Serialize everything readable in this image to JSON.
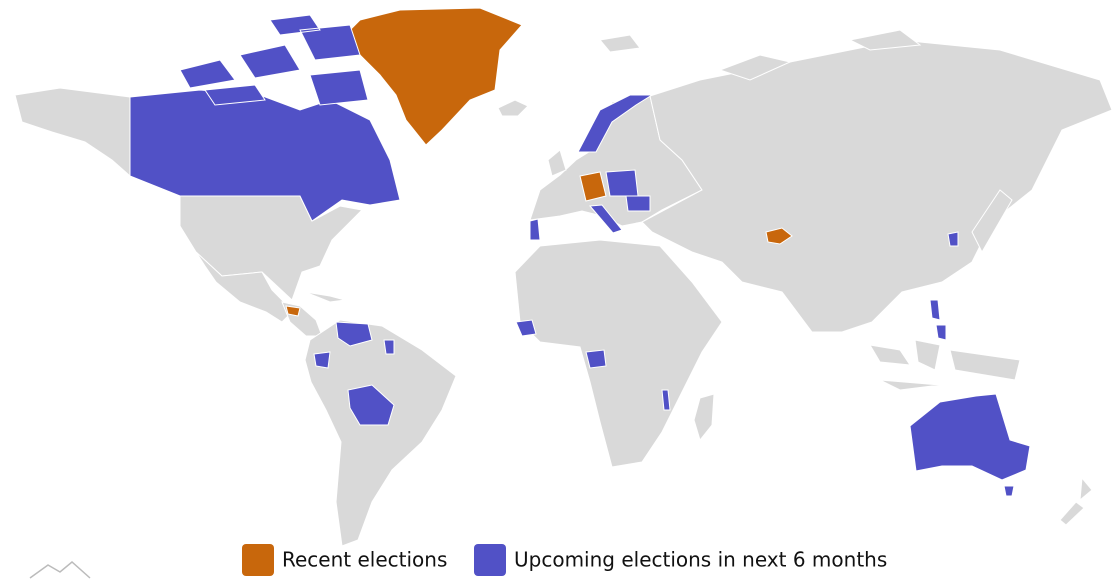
{
  "legend": [
    {
      "name": "Recent elections",
      "color": "#c8670c"
    },
    {
      "name": "Upcoming elections in next 6 months",
      "color": "#5151c6"
    }
  ]
}
